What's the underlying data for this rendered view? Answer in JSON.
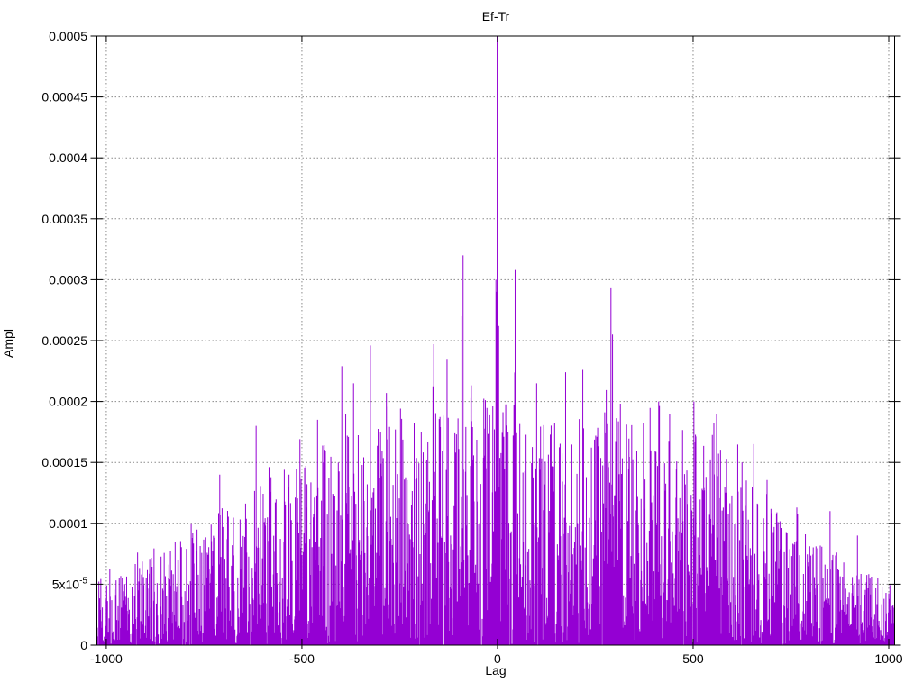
{
  "chart_data": {
    "type": "line",
    "style": "impulses",
    "title": "Ef-Tr",
    "xlabel": "Lag",
    "ylabel": "Ampl",
    "series_color": "#9400d3",
    "background": "#ffffff",
    "grid": true,
    "grid_color": "#8a8a8a",
    "axis_color": "#000000",
    "legend": "none",
    "xlim": [
      -1024,
      1015
    ],
    "ylim": [
      0,
      0.0005
    ],
    "xticks": [
      {
        "v": -1000,
        "label": "-1000"
      },
      {
        "v": -500,
        "label": "-500"
      },
      {
        "v": 0,
        "label": "0"
      },
      {
        "v": 500,
        "label": "500"
      },
      {
        "v": 1000,
        "label": "1000"
      }
    ],
    "yticks": [
      {
        "v": 0,
        "label": "0"
      },
      {
        "v": 5e-05,
        "label": "5x10",
        "sup": "-5"
      },
      {
        "v": 0.0001,
        "label": "0.0001"
      },
      {
        "v": 0.00015,
        "label": "0.00015"
      },
      {
        "v": 0.0002,
        "label": "0.0002"
      },
      {
        "v": 0.00025,
        "label": "0.00025"
      },
      {
        "v": 0.0003,
        "label": "0.0003"
      },
      {
        "v": 0.00035,
        "label": "0.00035"
      },
      {
        "v": 0.0004,
        "label": "0.0004"
      },
      {
        "v": 0.00045,
        "label": "0.00045"
      },
      {
        "v": 0.0005,
        "label": "0.0005"
      }
    ],
    "main_peak": {
      "lag": 0,
      "ampl": 0.0005,
      "clipped_at_top": true
    },
    "peaks": [
      [
        -920,
        7.6e-05
      ],
      [
        -710,
        0.00014
      ],
      [
        -617,
        0.00018
      ],
      [
        -460,
        0.000185
      ],
      [
        -398,
        0.000229
      ],
      [
        -368,
        0.000215
      ],
      [
        -325,
        0.000246
      ],
      [
        -284,
        0.000207
      ],
      [
        -163,
        0.000247
      ],
      [
        -129,
        0.000235
      ],
      [
        -93,
        0.00027
      ],
      [
        -88,
        0.00032
      ],
      [
        -4,
        0.0003
      ],
      [
        -2,
        0.00029
      ],
      [
        3,
        0.000262
      ],
      [
        45,
        0.000308
      ],
      [
        100,
        0.000215
      ],
      [
        174,
        0.000224
      ],
      [
        218,
        0.000226
      ],
      [
        290,
        0.000293
      ],
      [
        294,
        0.000255
      ],
      [
        412,
        0.0002
      ],
      [
        440,
        0.00019
      ],
      [
        502,
        0.0002
      ],
      [
        553,
        0.000182
      ],
      [
        560,
        0.00019
      ],
      [
        655,
        0.000165
      ],
      [
        765,
        0.000113
      ],
      [
        850,
        0.00011
      ],
      [
        920,
        9e-05
      ]
    ],
    "noise": {
      "seed": 1987,
      "shape_exponent": 2.1,
      "tall_spike_prob": 0.055,
      "envelope": {
        "lags": [
          -1024,
          -900,
          -800,
          -700,
          -600,
          -500,
          -400,
          -300,
          -200,
          -100,
          0,
          100,
          200,
          300,
          400,
          500,
          600,
          700,
          800,
          900,
          1015
        ],
        "ampl": [
          5.5e-05,
          7e-05,
          9e-05,
          0.000115,
          0.000135,
          0.000155,
          0.000175,
          0.000185,
          0.00019,
          0.0002,
          0.00021,
          0.0002,
          0.000195,
          0.00019,
          0.00018,
          0.000185,
          0.000155,
          0.00012,
          9e-05,
          6.5e-05,
          5e-05
        ]
      }
    }
  }
}
